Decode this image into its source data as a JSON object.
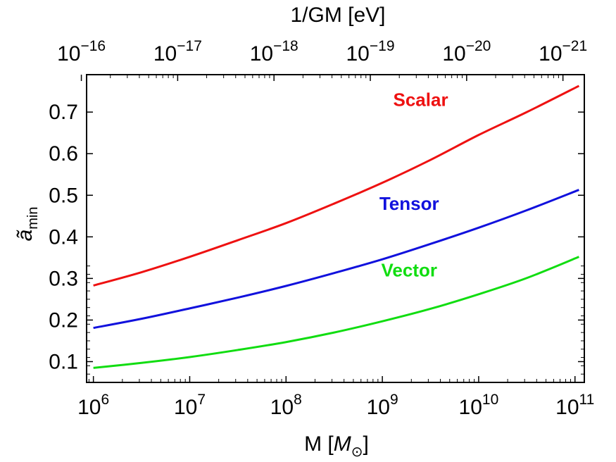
{
  "chart_data": {
    "type": "line",
    "xscale": "log",
    "xlim": [
      850000,
      125000000000
    ],
    "ylim": [
      0.05,
      0.79
    ],
    "xlabel": "M [M⊙]",
    "xlabel_parts": {
      "prefix": "M [",
      "symbol": "M",
      "sub": "⊙",
      "suffix": "]"
    },
    "top_xlabel": "1/GM [eV]",
    "ylabel_parts": {
      "base": "ã",
      "sub": "min"
    },
    "x_ticks": [
      {
        "value": 1000000,
        "base": "10",
        "exp": "6"
      },
      {
        "value": 10000000,
        "base": "10",
        "exp": "7"
      },
      {
        "value": 100000000,
        "base": "10",
        "exp": "8"
      },
      {
        "value": 1000000000,
        "base": "10",
        "exp": "9"
      },
      {
        "value": 10000000000,
        "base": "10",
        "exp": "10"
      },
      {
        "value": 100000000000,
        "base": "10",
        "exp": "11"
      }
    ],
    "top_ticks": [
      {
        "value": 750000,
        "base": "10",
        "exp": "−16"
      },
      {
        "value": 7500000,
        "base": "10",
        "exp": "−17"
      },
      {
        "value": 75000000,
        "base": "10",
        "exp": "−18"
      },
      {
        "value": 750000000,
        "base": "10",
        "exp": "−19"
      },
      {
        "value": 7500000000,
        "base": "10",
        "exp": "−20"
      },
      {
        "value": 75000000000,
        "base": "10",
        "exp": "−21"
      }
    ],
    "y_ticks": [
      {
        "value": 0.1,
        "label": "0.1"
      },
      {
        "value": 0.2,
        "label": "0.2"
      },
      {
        "value": 0.3,
        "label": "0.3"
      },
      {
        "value": 0.4,
        "label": "0.4"
      },
      {
        "value": 0.5,
        "label": "0.5"
      },
      {
        "value": 0.6,
        "label": "0.6"
      },
      {
        "value": 0.7,
        "label": "0.7"
      }
    ],
    "x": [
      1000000,
      3160000,
      10000000,
      31600000,
      100000000,
      316000000,
      1000000000,
      3160000000,
      10000000000,
      31600000000,
      110000000000
    ],
    "series": [
      {
        "name": "Scalar",
        "color": "#ee1111",
        "values": [
          0.283,
          0.315,
          0.352,
          0.392,
          0.433,
          0.48,
          0.53,
          0.585,
          0.645,
          0.7,
          0.763
        ],
        "label_at": [
          2500000000,
          0.715
        ]
      },
      {
        "name": "Tensor",
        "color": "#1111dd",
        "values": [
          0.181,
          0.203,
          0.228,
          0.254,
          0.282,
          0.313,
          0.346,
          0.383,
          0.422,
          0.464,
          0.513
        ],
        "label_at": [
          1900000000,
          0.465
        ]
      },
      {
        "name": "Vector",
        "color": "#11dd11",
        "values": [
          0.085,
          0.097,
          0.111,
          0.128,
          0.147,
          0.17,
          0.197,
          0.227,
          0.262,
          0.301,
          0.352
        ],
        "label_at": [
          1900000000,
          0.305
        ]
      }
    ]
  }
}
